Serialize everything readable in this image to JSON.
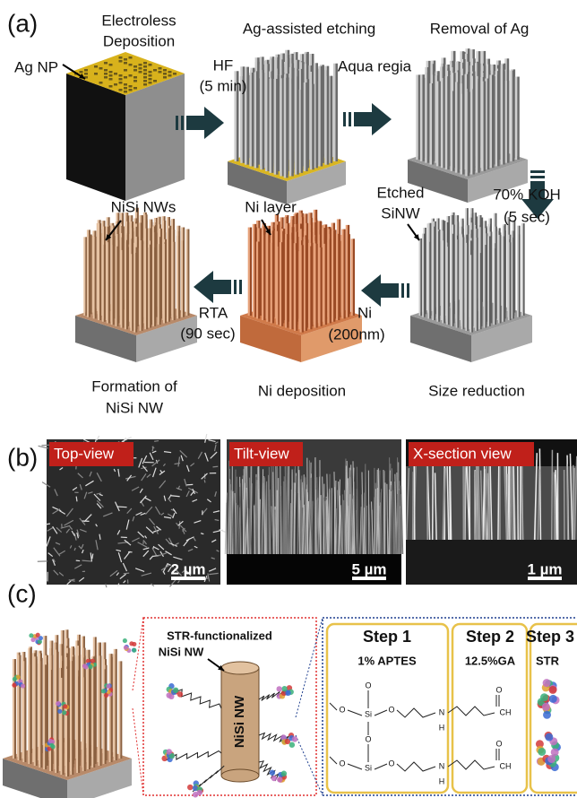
{
  "panel_a": {
    "label": "(a)",
    "electroless_deposition": [
      "Electroless",
      "Deposition"
    ],
    "ag_np": "Ag NP",
    "hf": [
      "HF",
      "(5 min)"
    ],
    "ag_assisted_etching": "Ag-assisted etching",
    "aqua_regia": "Aqua regia",
    "removal_of_ag": "Removal of Ag",
    "etched_sinw": [
      "Etched",
      "SiNW"
    ],
    "koh": [
      "70% KOH",
      "(5 sec)"
    ],
    "nisi_nws": "NiSi NWs",
    "ni_layer": "Ni layer",
    "rta": [
      "RTA",
      "(90 sec)"
    ],
    "ni": [
      "Ni",
      "(200nm)"
    ],
    "formation": [
      "Formation of",
      "NiSi NW"
    ],
    "ni_deposition": "Ni deposition",
    "size_reduction": "Size reduction"
  },
  "panel_b": {
    "label": "(b)",
    "images": [
      {
        "title": "Top-view",
        "scale": "2 µm"
      },
      {
        "title": "Tilt-view",
        "scale": "5 µm"
      },
      {
        "title": "X-section view",
        "scale": "1 µm"
      }
    ]
  },
  "panel_c": {
    "label": "(c)",
    "rod_caption": [
      "STR-functionalized",
      "NiSi NW"
    ],
    "rod_label": "NiSi NW",
    "steps": [
      {
        "title": "Step 1",
        "reagent": "1% APTES"
      },
      {
        "title": "Step 2",
        "reagent": "12.5%GA"
      },
      {
        "title": "Step 3",
        "reagent": "STR"
      }
    ],
    "chem_labels": [
      "O",
      "O",
      "Si",
      "O",
      "N",
      "H",
      "O",
      "CH",
      "O",
      "O",
      "Si",
      "O",
      "N",
      "H",
      "O",
      "CH"
    ]
  }
}
